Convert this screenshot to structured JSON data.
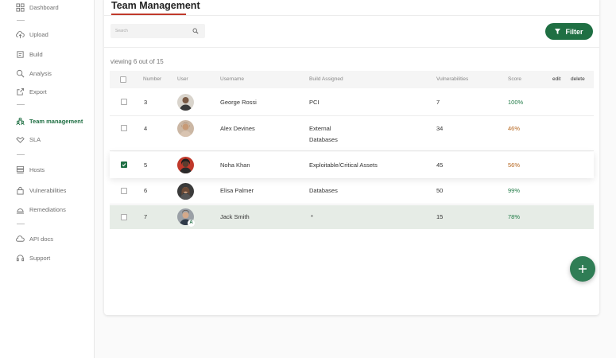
{
  "sidebar": {
    "items": [
      {
        "label": "Dashboard",
        "icon": "dashboard-icon"
      },
      {
        "label": "Upload",
        "icon": "cloud-upload-icon"
      },
      {
        "label": "Build",
        "icon": "build-icon"
      },
      {
        "label": "Analysis",
        "icon": "search-icon"
      },
      {
        "label": "Export",
        "icon": "export-icon"
      },
      {
        "label": "Team management",
        "icon": "team-icon",
        "active": true
      },
      {
        "label": "SLA",
        "icon": "handshake-icon"
      },
      {
        "label": "Hosts",
        "icon": "server-icon"
      },
      {
        "label": "Vulnerabilities",
        "icon": "lock-icon"
      },
      {
        "label": "Remediations",
        "icon": "remediation-icon"
      },
      {
        "label": "API docs",
        "icon": "cloud-icon"
      },
      {
        "label": "Support",
        "icon": "headset-icon"
      }
    ]
  },
  "page": {
    "title": "Team Management",
    "search_placeholder": "Search",
    "filter_label": "Filter",
    "viewing_text": "viewing 6 out of 15"
  },
  "table": {
    "headers": {
      "number": "Number",
      "user": "User",
      "username": "Username",
      "build": "Build Assigned",
      "vulnerabilities": "Vulnerabilities",
      "score": "Score",
      "edit": "edit",
      "delete": "delete"
    },
    "rows": [
      {
        "number": "3",
        "username": "George Rossi",
        "build_line1": "PCI",
        "build_line2": "",
        "vulnerabilities": "7",
        "score": "100%",
        "score_color": "#1f7a45",
        "checked": false
      },
      {
        "number": "4",
        "username": "Alex Devines",
        "build_line1": "External",
        "build_line2": "Databases",
        "vulnerabilities": "34",
        "score": "46%",
        "score_color": "#b5651d",
        "checked": false
      },
      {
        "number": "5",
        "username": "Noha Khan",
        "build_line1": "Exploitable/Critical Assets",
        "build_line2": "",
        "vulnerabilities": "45",
        "score": "56%",
        "score_color": "#b5651d",
        "checked": true
      },
      {
        "number": "6",
        "username": "Elisa Palmer",
        "build_line1": "Databases",
        "build_line2": "",
        "vulnerabilities": "50",
        "score": "99%",
        "score_color": "#1f7a45",
        "checked": false
      },
      {
        "number": "7",
        "username": "Jack Smith",
        "build_line1": "*",
        "build_line2": "",
        "vulnerabilities": "15",
        "score": "78%",
        "score_color": "#1f7a45",
        "checked": false,
        "badge": "A"
      }
    ]
  },
  "colors": {
    "accent": "#1f6f43",
    "title_underline": "#c0392b"
  }
}
